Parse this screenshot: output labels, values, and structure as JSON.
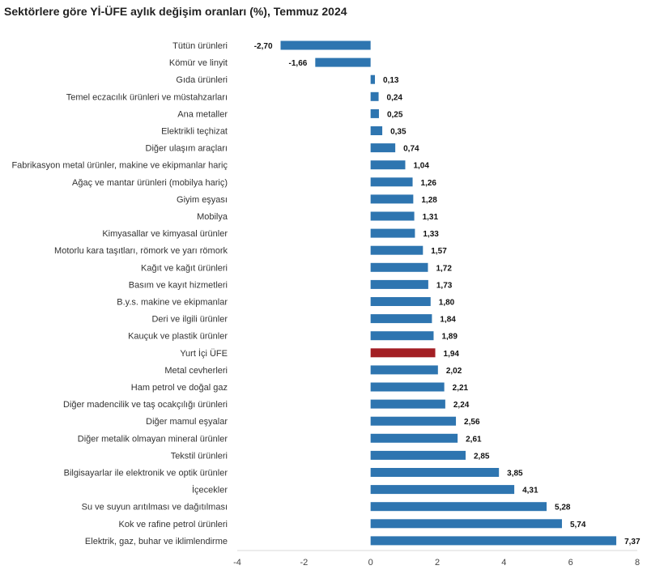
{
  "chart_data": {
    "type": "bar",
    "orientation": "horizontal",
    "title": "Sektörlere göre Yİ-ÜFE aylık değişim oranları (%), Temmuz 2024",
    "xlabel": "",
    "ylabel": "",
    "xlim": [
      -4,
      8
    ],
    "xticks": [
      -4,
      -2,
      0,
      2,
      4,
      6,
      8
    ],
    "grid": false,
    "legend": "none",
    "colors": {
      "default": "#2e75b0",
      "highlight": "#a31f24"
    },
    "highlight_category": "Yurt İçi ÜFE",
    "categories": [
      "Tütün ürünleri",
      "Kömür ve linyit",
      "Gıda ürünleri",
      "Temel eczacılık ürünleri ve müstahzarları",
      "Ana metaller",
      "Elektrikli teçhizat",
      "Diğer ulaşım araçları",
      "Fabrikasyon metal ürünler, makine ve ekipmanlar hariç",
      "Ağaç ve mantar ürünleri (mobilya hariç)",
      "Giyim eşyası",
      "Mobilya",
      "Kimyasallar ve kimyasal ürünler",
      "Motorlu kara taşıtları, römork ve yarı römork",
      "Kağıt ve kağıt ürünleri",
      "Basım ve kayıt hizmetleri",
      "B.y.s. makine ve ekipmanlar",
      "Deri ve ilgili ürünler",
      "Kauçuk ve plastik ürünler",
      "Yurt İçi ÜFE",
      "Metal cevherleri",
      "Ham petrol ve doğal gaz",
      "Diğer madencilik ve taş ocakçılığı ürünleri",
      "Diğer mamul eşyalar",
      "Diğer metalik olmayan mineral ürünler",
      "Tekstil ürünleri",
      "Bilgisayarlar ile elektronik ve optik ürünler",
      "İçecekler",
      "Su ve suyun arıtılması ve dağıtılması",
      "Kok ve rafine petrol ürünleri",
      "Elektrik, gaz, buhar ve iklimlendirme"
    ],
    "values": [
      -2.7,
      -1.66,
      0.13,
      0.24,
      0.25,
      0.35,
      0.74,
      1.04,
      1.26,
      1.28,
      1.31,
      1.33,
      1.57,
      1.72,
      1.73,
      1.8,
      1.84,
      1.89,
      1.94,
      2.02,
      2.21,
      2.24,
      2.56,
      2.61,
      2.85,
      3.85,
      4.31,
      5.28,
      5.74,
      7.37
    ],
    "value_labels": [
      "-2,70",
      "-1,66",
      "0,13",
      "0,24",
      "0,25",
      "0,35",
      "0,74",
      "1,04",
      "1,26",
      "1,28",
      "1,31",
      "1,33",
      "1,57",
      "1,72",
      "1,73",
      "1,80",
      "1,84",
      "1,89",
      "1,94",
      "2,02",
      "2,21",
      "2,24",
      "2,56",
      "2,61",
      "2,85",
      "3,85",
      "4,31",
      "5,28",
      "5,74",
      "7,37"
    ]
  }
}
